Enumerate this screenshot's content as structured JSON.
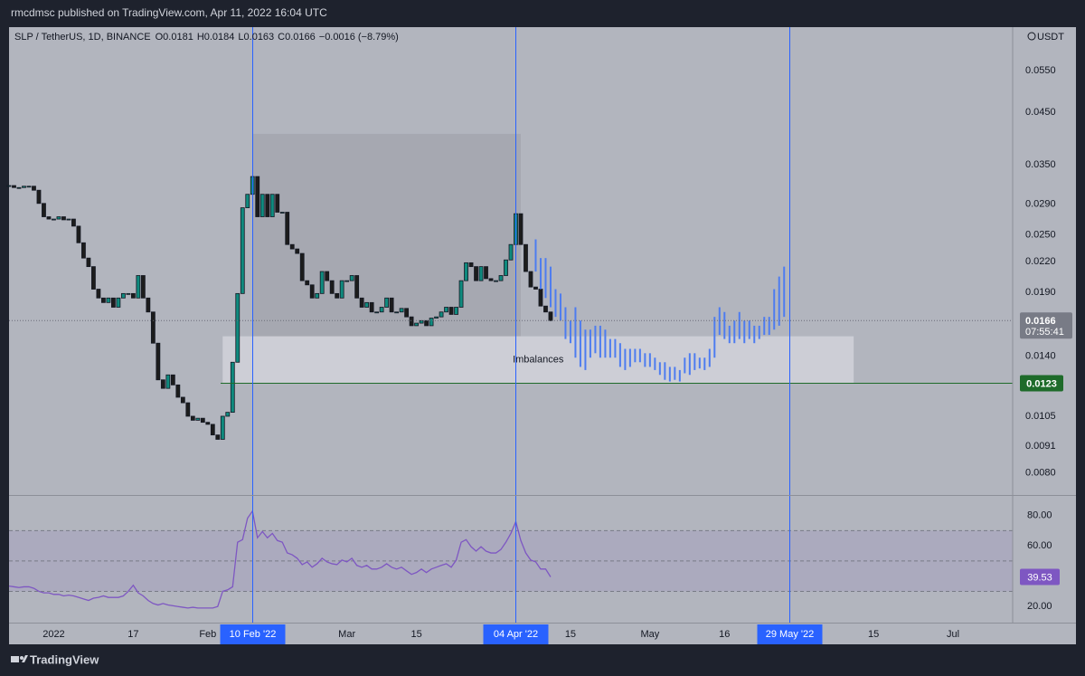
{
  "header": {
    "title": "rmcdmsc published on TradingView.com, Apr 11, 2022 16:04 UTC"
  },
  "footer": {
    "brand": "TradingView"
  },
  "chart_data": [
    {
      "type": "candlestick",
      "symbol": "SLP / TetherUS, 1D, BINANCE",
      "ohlc": [
        "O0.0181",
        "H0.0184",
        "L0.0163",
        "C0.0166"
      ],
      "change": "−0.0016 (−8.79%)",
      "unit": "USDT",
      "countdown": "07:55:41",
      "up_color": "#0f8a7e",
      "down_color": "#1c1c1c",
      "log_scale": true,
      "xlim": [
        "2021-12-23",
        "2022-07-13"
      ],
      "ylim": [
        0.0072,
        0.0677
      ],
      "yticks": [
        {
          "value": 0.008,
          "label": "0.0080"
        },
        0.0091,
        0.0105,
        {
          "value": 0.014,
          "label": "0.0140"
        },
        {
          "value": 0.019,
          "label": "0.0190"
        },
        {
          "value": 0.022,
          "label": "0.0220"
        },
        {
          "value": 0.025,
          "label": "0.0250"
        },
        {
          "value": 0.029,
          "label": "0.0290"
        },
        {
          "value": 0.035,
          "label": "0.0350"
        },
        {
          "value": 0.045,
          "label": "0.0450"
        },
        {
          "value": 0.055,
          "label": "0.0550"
        }
      ],
      "xticks": [
        {
          "value": "2022-01-01",
          "label": "2022"
        },
        {
          "value": "2022-01-17",
          "label": "17"
        },
        {
          "value": "2022-02-01",
          "label": "Feb"
        },
        {
          "value": "2022-03-01",
          "label": "Mar"
        },
        {
          "value": "2022-03-15",
          "label": "15"
        },
        {
          "value": "2022-04-15",
          "label": "15"
        },
        {
          "value": "2022-05-01",
          "label": "May"
        },
        {
          "value": "2022-05-16",
          "label": "16"
        },
        {
          "value": "2022-06-15",
          "label": "15"
        },
        {
          "value": "2022-07-01",
          "label": "Jul"
        }
      ],
      "x": [
        "2021-12-23",
        "2021-12-24",
        "2021-12-25",
        "2021-12-26",
        "2021-12-27",
        "2021-12-28",
        "2021-12-29",
        "2021-12-30",
        "2021-12-31",
        "2022-01-01",
        "2022-01-02",
        "2022-01-03",
        "2022-01-04",
        "2022-01-05",
        "2022-01-06",
        "2022-01-07",
        "2022-01-08",
        "2022-01-09",
        "2022-01-10",
        "2022-01-11",
        "2022-01-12",
        "2022-01-13",
        "2022-01-14",
        "2022-01-15",
        "2022-01-16",
        "2022-01-17",
        "2022-01-18",
        "2022-01-19",
        "2022-01-20",
        "2022-01-21",
        "2022-01-22",
        "2022-01-23",
        "2022-01-24",
        "2022-01-25",
        "2022-01-26",
        "2022-01-27",
        "2022-01-28",
        "2022-01-29",
        "2022-01-30",
        "2022-01-31",
        "2022-02-01",
        "2022-02-02",
        "2022-02-03",
        "2022-02-04",
        "2022-02-05",
        "2022-02-06",
        "2022-02-07",
        "2022-02-08",
        "2022-02-09",
        "2022-02-10",
        "2022-02-11",
        "2022-02-12",
        "2022-02-13",
        "2022-02-14",
        "2022-02-15",
        "2022-02-16",
        "2022-02-17",
        "2022-02-18",
        "2022-02-19",
        "2022-02-20",
        "2022-02-21",
        "2022-02-22",
        "2022-02-23",
        "2022-02-24",
        "2022-02-25",
        "2022-02-26",
        "2022-02-27",
        "2022-02-28",
        "2022-03-01",
        "2022-03-02",
        "2022-03-03",
        "2022-03-04",
        "2022-03-05",
        "2022-03-06",
        "2022-03-07",
        "2022-03-08",
        "2022-03-09",
        "2022-03-10",
        "2022-03-11",
        "2022-03-12",
        "2022-03-13",
        "2022-03-14",
        "2022-03-15",
        "2022-03-16",
        "2022-03-17",
        "2022-03-18",
        "2022-03-19",
        "2022-03-20",
        "2022-03-21",
        "2022-03-22",
        "2022-03-23",
        "2022-03-24",
        "2022-03-25",
        "2022-03-26",
        "2022-03-27",
        "2022-03-28",
        "2022-03-29",
        "2022-03-30",
        "2022-03-31",
        "2022-04-01",
        "2022-04-02",
        "2022-04-03",
        "2022-04-04",
        "2022-04-05",
        "2022-04-06",
        "2022-04-07",
        "2022-04-08",
        "2022-04-09",
        "2022-04-10",
        "2022-04-11"
      ],
      "close": [
        0.0317,
        0.0314,
        0.0314,
        0.0316,
        0.0316,
        0.031,
        0.0291,
        0.0273,
        0.027,
        0.027,
        0.0273,
        0.0269,
        0.027,
        0.0261,
        0.0241,
        0.0224,
        0.0215,
        0.0193,
        0.0185,
        0.0181,
        0.0185,
        0.0177,
        0.0185,
        0.0189,
        0.0189,
        0.0185,
        0.0206,
        0.0185,
        0.0173,
        0.0149,
        0.0125,
        0.012,
        0.0128,
        0.0122,
        0.0115,
        0.0112,
        0.0105,
        0.0103,
        0.0104,
        0.0102,
        0.0101,
        0.0096,
        0.0094,
        0.0105,
        0.0107,
        0.0136,
        0.0189,
        0.0285,
        0.0304,
        0.0331,
        0.0273,
        0.0304,
        0.0273,
        0.0304,
        0.0279,
        0.0279,
        0.0239,
        0.0234,
        0.0229,
        0.0201,
        0.0197,
        0.0185,
        0.0189,
        0.021,
        0.0201,
        0.0189,
        0.0185,
        0.0201,
        0.0201,
        0.0206,
        0.0185,
        0.0177,
        0.0181,
        0.0173,
        0.0173,
        0.0177,
        0.0185,
        0.0173,
        0.0173,
        0.0176,
        0.0169,
        0.0162,
        0.0164,
        0.0166,
        0.0162,
        0.0168,
        0.0169,
        0.0173,
        0.0177,
        0.0171,
        0.0177,
        0.0201,
        0.0219,
        0.0215,
        0.0201,
        0.0215,
        0.0203,
        0.0201,
        0.0201,
        0.0206,
        0.0222,
        0.0239,
        0.0277,
        0.0239,
        0.021,
        0.0195,
        0.0193,
        0.0178,
        0.0173,
        0.0166
      ],
      "hline": {
        "value": 0.0123,
        "color": "#1e6b2a"
      },
      "zones": [
        {
          "from": "2022-02-10",
          "to": "2022-04-05",
          "low": 0.0154,
          "high": 0.0406,
          "color": "#a2a5ae"
        },
        {
          "from": "2022-02-04",
          "to": "2022-06-11",
          "low": 0.0123,
          "high": 0.0154,
          "color": "#d3d5dc",
          "label": "Imbalances"
        }
      ],
      "vlines": [
        {
          "value": "2022-02-10",
          "label": "10 Feb '22"
        },
        {
          "value": "2022-04-04",
          "label": "04 Apr '22"
        },
        {
          "value": "2022-05-29",
          "label": "29 May '22"
        }
      ],
      "vline_color": "#2962ff",
      "projection": {
        "color": "#4d7cf0",
        "x": [
          "2022-04-08",
          "2022-04-09",
          "2022-04-10",
          "2022-04-11",
          "2022-04-12",
          "2022-04-13",
          "2022-04-14",
          "2022-04-15",
          "2022-04-16",
          "2022-04-17",
          "2022-04-18",
          "2022-04-19",
          "2022-04-20",
          "2022-04-21",
          "2022-04-22",
          "2022-04-23",
          "2022-04-24",
          "2022-04-25",
          "2022-04-26",
          "2022-04-27",
          "2022-04-28",
          "2022-04-29",
          "2022-04-30",
          "2022-05-01",
          "2022-05-02",
          "2022-05-03",
          "2022-05-04",
          "2022-05-05",
          "2022-05-06",
          "2022-05-07",
          "2022-05-08",
          "2022-05-09",
          "2022-05-10",
          "2022-05-11",
          "2022-05-12",
          "2022-05-13",
          "2022-05-14",
          "2022-05-15",
          "2022-05-16",
          "2022-05-17",
          "2022-05-18",
          "2022-05-19",
          "2022-05-20",
          "2022-05-21",
          "2022-05-22",
          "2022-05-23",
          "2022-05-24",
          "2022-05-25",
          "2022-05-26",
          "2022-05-27",
          "2022-05-28"
        ],
        "low": [
          0.021,
          0.0193,
          0.0185,
          0.0177,
          0.0169,
          0.0166,
          0.0152,
          0.0149,
          0.0139,
          0.0133,
          0.0131,
          0.0139,
          0.0142,
          0.0139,
          0.0139,
          0.0139,
          0.0139,
          0.0133,
          0.0131,
          0.0133,
          0.0136,
          0.0136,
          0.0133,
          0.0133,
          0.0131,
          0.0128,
          0.0125,
          0.0124,
          0.0125,
          0.0124,
          0.0129,
          0.0128,
          0.0131,
          0.0132,
          0.0131,
          0.0133,
          0.0139,
          0.0155,
          0.0152,
          0.0149,
          0.0149,
          0.0152,
          0.0149,
          0.0152,
          0.0149,
          0.0152,
          0.0155,
          0.0155,
          0.0159,
          0.0162,
          0.0169
        ],
        "high": [
          0.0245,
          0.0224,
          0.0224,
          0.0215,
          0.0193,
          0.0189,
          0.0177,
          0.0166,
          0.0177,
          0.0166,
          0.0159,
          0.0159,
          0.0162,
          0.0162,
          0.0159,
          0.0152,
          0.0152,
          0.0149,
          0.0145,
          0.0145,
          0.0145,
          0.0145,
          0.0142,
          0.0142,
          0.0139,
          0.0136,
          0.0136,
          0.0133,
          0.0133,
          0.0131,
          0.0139,
          0.0142,
          0.0142,
          0.0139,
          0.0139,
          0.0145,
          0.0169,
          0.0177,
          0.0173,
          0.0162,
          0.0166,
          0.0173,
          0.0166,
          0.0166,
          0.0162,
          0.0162,
          0.0169,
          0.0169,
          0.0193,
          0.0205,
          0.0215
        ]
      }
    },
    {
      "type": "line",
      "color": "#7e57c2",
      "ylim": [
        9.4,
        92.9
      ],
      "yticks": [
        {
          "value": 20,
          "label": "20.00"
        },
        {
          "value": 60,
          "label": "60.00"
        },
        {
          "value": 80,
          "label": "80.00"
        }
      ],
      "levels": [
        70,
        50,
        30
      ],
      "band": [
        30,
        70
      ],
      "values": [
        33.5,
        33,
        32.5,
        33,
        33,
        32,
        30,
        29,
        29,
        28,
        28,
        27,
        27.5,
        27,
        26,
        25,
        24,
        25.5,
        26,
        27,
        26,
        26,
        26,
        27,
        30,
        34,
        29,
        27,
        24,
        22,
        21,
        22,
        21,
        20.5,
        20,
        19.5,
        19,
        19.5,
        19,
        19,
        19,
        19,
        20,
        30,
        31,
        33,
        62.4,
        64.1,
        78.2,
        82.9,
        65.3,
        69.4,
        65.3,
        68.2,
        63.5,
        62.4,
        55.3,
        54.1,
        51.8,
        47.6,
        49.4,
        45.9,
        48.2,
        51.8,
        49.4,
        48.2,
        47.6,
        50.6,
        49.4,
        51.8,
        47.1,
        45.9,
        47.1,
        44.7,
        44.7,
        45.9,
        48.2,
        45.9,
        44.7,
        45.9,
        43.5,
        41.2,
        42.4,
        44.7,
        42.4,
        44.7,
        45.9,
        47.1,
        48.2,
        45.9,
        50.6,
        62.4,
        64.1,
        59.4,
        56.5,
        59.4,
        56.5,
        55.3,
        55.3,
        57.6,
        62.4,
        68.2,
        75.9,
        63.5,
        55.3,
        50.6,
        49.4,
        44.7,
        44.7,
        39.53
      ]
    }
  ]
}
